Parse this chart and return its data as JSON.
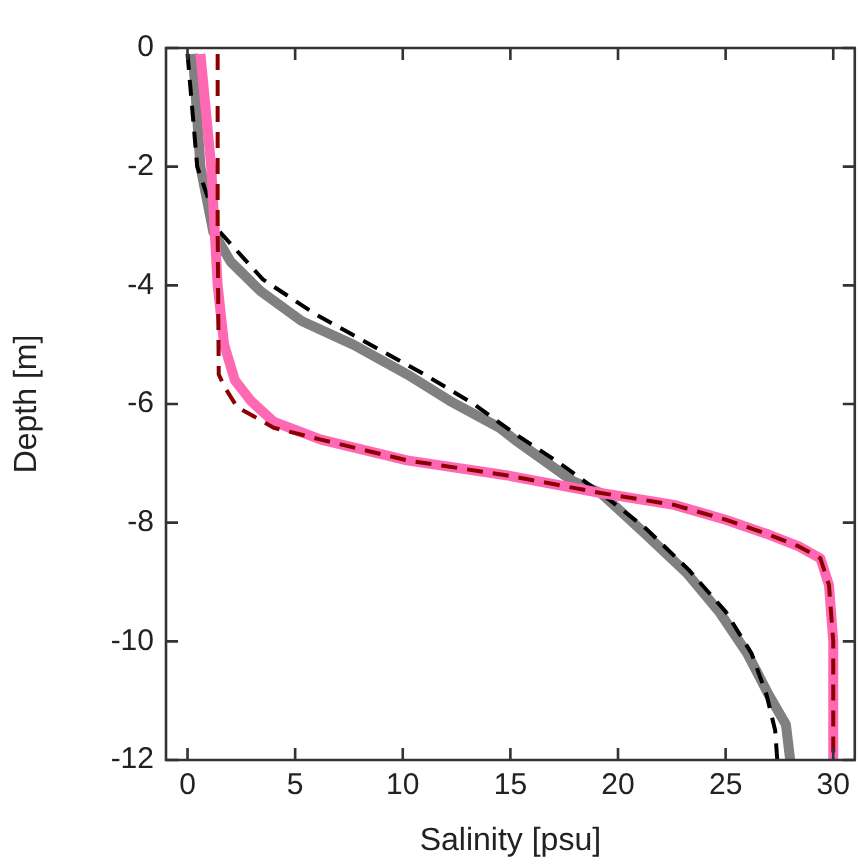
{
  "chart_data": {
    "type": "line",
    "xlabel": "Salinity [psu]",
    "ylabel": "Depth [m]",
    "xlim": [
      -1,
      31
    ],
    "xticks": [
      0,
      5,
      10,
      15,
      20,
      25,
      30
    ],
    "ylim": [
      -12,
      0
    ],
    "yticks": [
      0,
      -2,
      -4,
      -6,
      -8,
      -10,
      -12
    ],
    "grid": false,
    "legend": false,
    "marker": "none",
    "series": [
      {
        "color": "#808080",
        "line_style": "solid",
        "x": [
          0.25,
          0.6,
          1.2,
          2.0,
          3.4,
          5.3,
          7.7,
          10.2,
          12.2,
          14.5,
          15.2,
          17.9,
          19.2,
          21.3,
          23.2,
          24.7,
          26.0,
          27.0,
          27.8,
          28.0
        ],
        "values": [
          -0.1,
          -2.0,
          -3.1,
          -3.6,
          -4.1,
          -4.6,
          -5.0,
          -5.5,
          -5.95,
          -6.4,
          -6.6,
          -7.3,
          -7.5,
          -8.2,
          -8.85,
          -9.5,
          -10.2,
          -10.9,
          -11.4,
          -12
        ]
      },
      {
        "color": "#000000",
        "line_style": "dashed",
        "x": [
          0,
          0.45,
          1.5,
          3.5,
          6.0,
          8.5,
          11.0,
          13.3,
          15.2,
          17.3,
          19.2,
          21.3,
          23.3,
          25.0,
          26.2,
          26.9,
          27.3,
          27.4
        ],
        "values": [
          -0.1,
          -2.0,
          -3.1,
          -3.9,
          -4.5,
          -5.0,
          -5.5,
          -6.0,
          -6.5,
          -7.0,
          -7.5,
          -8.1,
          -8.8,
          -9.5,
          -10.2,
          -10.9,
          -11.5,
          -12
        ]
      },
      {
        "color": "#ff69b4",
        "line_style": "solid",
        "x": [
          0.6,
          1.1,
          1.25,
          1.4,
          1.7,
          2.2,
          2.95,
          4.0,
          6.2,
          10.2,
          14.8,
          19.2,
          22.6,
          25.0,
          27.0,
          28.4,
          29.4,
          29.8,
          30.0,
          30.0
        ],
        "values": [
          -0.1,
          -2.0,
          -3.0,
          -4.0,
          -5.0,
          -5.6,
          -5.95,
          -6.3,
          -6.6,
          -6.95,
          -7.2,
          -7.5,
          -7.7,
          -7.95,
          -8.2,
          -8.4,
          -8.6,
          -9.05,
          -10,
          -12
        ]
      },
      {
        "color": "#8b0000",
        "line_style": "dashed",
        "x": [
          1.4,
          1.4,
          1.45,
          1.7,
          2.3,
          2.8,
          4.0,
          6.2,
          10.2,
          14.8,
          19.2,
          22.6,
          25.0,
          27.0,
          28.4,
          29.4,
          29.8,
          30.0,
          30.0
        ],
        "values": [
          -0.1,
          -3.0,
          -5.5,
          -5.7,
          -6.05,
          -6.15,
          -6.4,
          -6.6,
          -6.95,
          -7.2,
          -7.5,
          -7.7,
          -7.95,
          -8.2,
          -8.4,
          -8.6,
          -9.05,
          -10,
          -12
        ]
      }
    ]
  }
}
